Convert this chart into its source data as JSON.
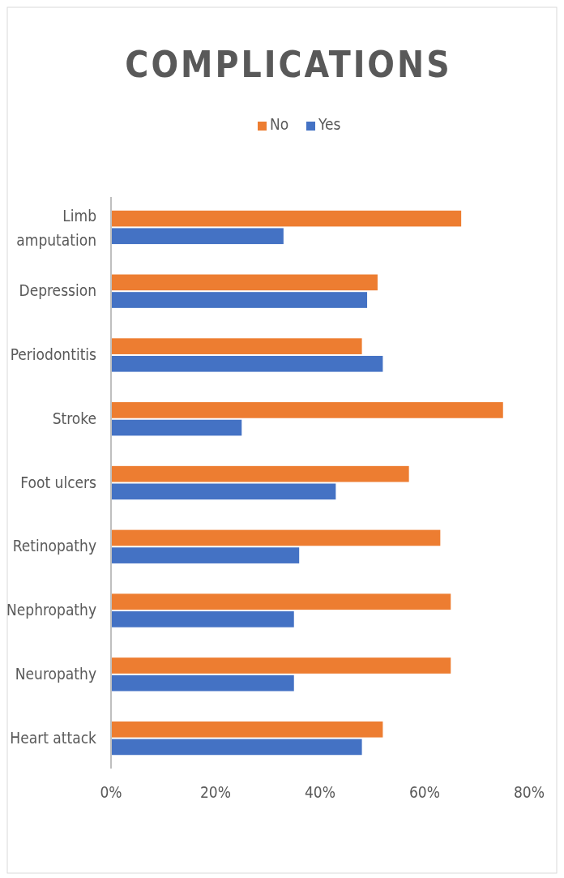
{
  "chart_data": {
    "type": "bar",
    "orientation": "horizontal",
    "title": "COMPLICATIONS",
    "categories": [
      "Limb amputation",
      "Depression",
      "Periodontitis",
      "Stroke",
      "Foot ulcers",
      "Retinopathy",
      "Nephropathy",
      "Neuropathy",
      "Heart attack"
    ],
    "series": [
      {
        "name": "No",
        "color": "#ed7d31",
        "values": [
          67,
          51,
          48,
          75,
          57,
          63,
          65,
          65,
          52
        ]
      },
      {
        "name": "Yes",
        "color": "#4472c4",
        "values": [
          33,
          49,
          52,
          25,
          43,
          36,
          35,
          35,
          48
        ]
      }
    ],
    "xlim": [
      0,
      80
    ],
    "xticks": [
      {
        "value": 0,
        "label": "0%"
      },
      {
        "value": 20,
        "label": "20%"
      },
      {
        "value": 40,
        "label": "40%"
      },
      {
        "value": 60,
        "label": "60%"
      },
      {
        "value": 80,
        "label": "80%"
      }
    ],
    "grid": false,
    "legend": "top"
  }
}
